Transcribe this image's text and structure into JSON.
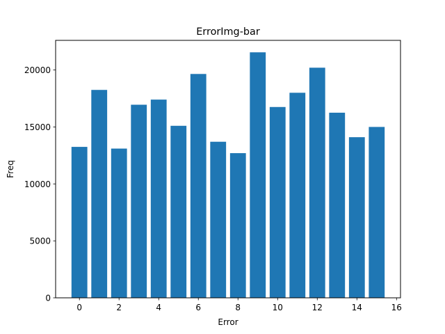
{
  "chart_data": {
    "type": "bar",
    "title": "ErrorImg-bar",
    "xlabel": "Error",
    "ylabel": "Freq",
    "x": [
      0,
      1,
      2,
      3,
      4,
      5,
      6,
      7,
      8,
      9,
      10,
      11,
      12,
      13,
      14,
      15
    ],
    "values": [
      13250,
      18250,
      13100,
      16950,
      17400,
      15100,
      19650,
      13700,
      12700,
      21550,
      16750,
      18000,
      20200,
      16250,
      14100,
      15000
    ],
    "xlim": [
      -1.2,
      16.2
    ],
    "ylim": [
      0,
      22600
    ],
    "xticks": [
      0,
      2,
      4,
      6,
      8,
      10,
      12,
      14,
      16
    ],
    "yticks": [
      0,
      5000,
      10000,
      15000,
      20000
    ],
    "bar_color": "#1f77b4",
    "grid": false,
    "legend": "none"
  }
}
